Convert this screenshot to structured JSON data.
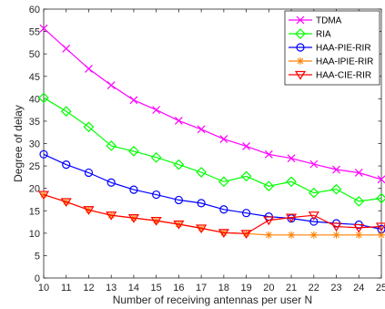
{
  "chart_data": {
    "type": "line",
    "xlabel": "Number of receiving antennas per user N",
    "ylabel": "Degree of delay",
    "xlim": [
      10,
      25
    ],
    "ylim": [
      0,
      60
    ],
    "xticks": [
      10,
      11,
      12,
      13,
      14,
      15,
      16,
      17,
      18,
      19,
      20,
      21,
      22,
      23,
      24,
      25
    ],
    "yticks": [
      0,
      5,
      10,
      15,
      20,
      25,
      30,
      35,
      40,
      45,
      50,
      55,
      60
    ],
    "grid": false,
    "legend_position": "top-right",
    "x": [
      10,
      11,
      12,
      13,
      14,
      15,
      16,
      17,
      18,
      19,
      20,
      21,
      22,
      23,
      24,
      25
    ],
    "series": [
      {
        "name": "TDMA",
        "color": "#ff00ff",
        "marker": "x",
        "values": [
          55.7,
          51.2,
          46.7,
          43.0,
          39.7,
          37.5,
          35.1,
          33.2,
          31.0,
          29.4,
          27.6,
          26.7,
          25.4,
          24.2,
          23.5,
          22.0
        ]
      },
      {
        "name": "RIA",
        "color": "#00ff00",
        "marker": "diamond",
        "values": [
          40.2,
          37.2,
          33.7,
          29.5,
          28.3,
          26.9,
          25.3,
          23.6,
          21.5,
          22.7,
          20.5,
          21.5,
          19.0,
          19.8,
          17.1,
          17.8
        ]
      },
      {
        "name": "HAA-PIE-RIR",
        "color": "#0000ff",
        "marker": "circle",
        "values": [
          27.6,
          25.3,
          23.5,
          21.3,
          19.7,
          18.6,
          17.4,
          16.7,
          15.3,
          14.5,
          13.7,
          13.3,
          12.6,
          12.2,
          11.9,
          10.9
        ]
      },
      {
        "name": "HAA-IPIE-RIR",
        "color": "#ff8000",
        "marker": "asterisk",
        "values": [
          18.6,
          17.0,
          15.2,
          14.0,
          13.4,
          12.8,
          12.0,
          11.1,
          10.1,
          9.9,
          9.6,
          9.6,
          9.6,
          9.6,
          9.6,
          9.6
        ]
      },
      {
        "name": "HAA-CIE-RIR",
        "color": "#ff0000",
        "marker": "triangle-down",
        "values": [
          18.6,
          17.0,
          15.2,
          14.0,
          13.4,
          12.8,
          12.0,
          11.1,
          10.1,
          9.9,
          12.9,
          13.5,
          14.0,
          11.5,
          11.2,
          11.5
        ]
      }
    ]
  }
}
